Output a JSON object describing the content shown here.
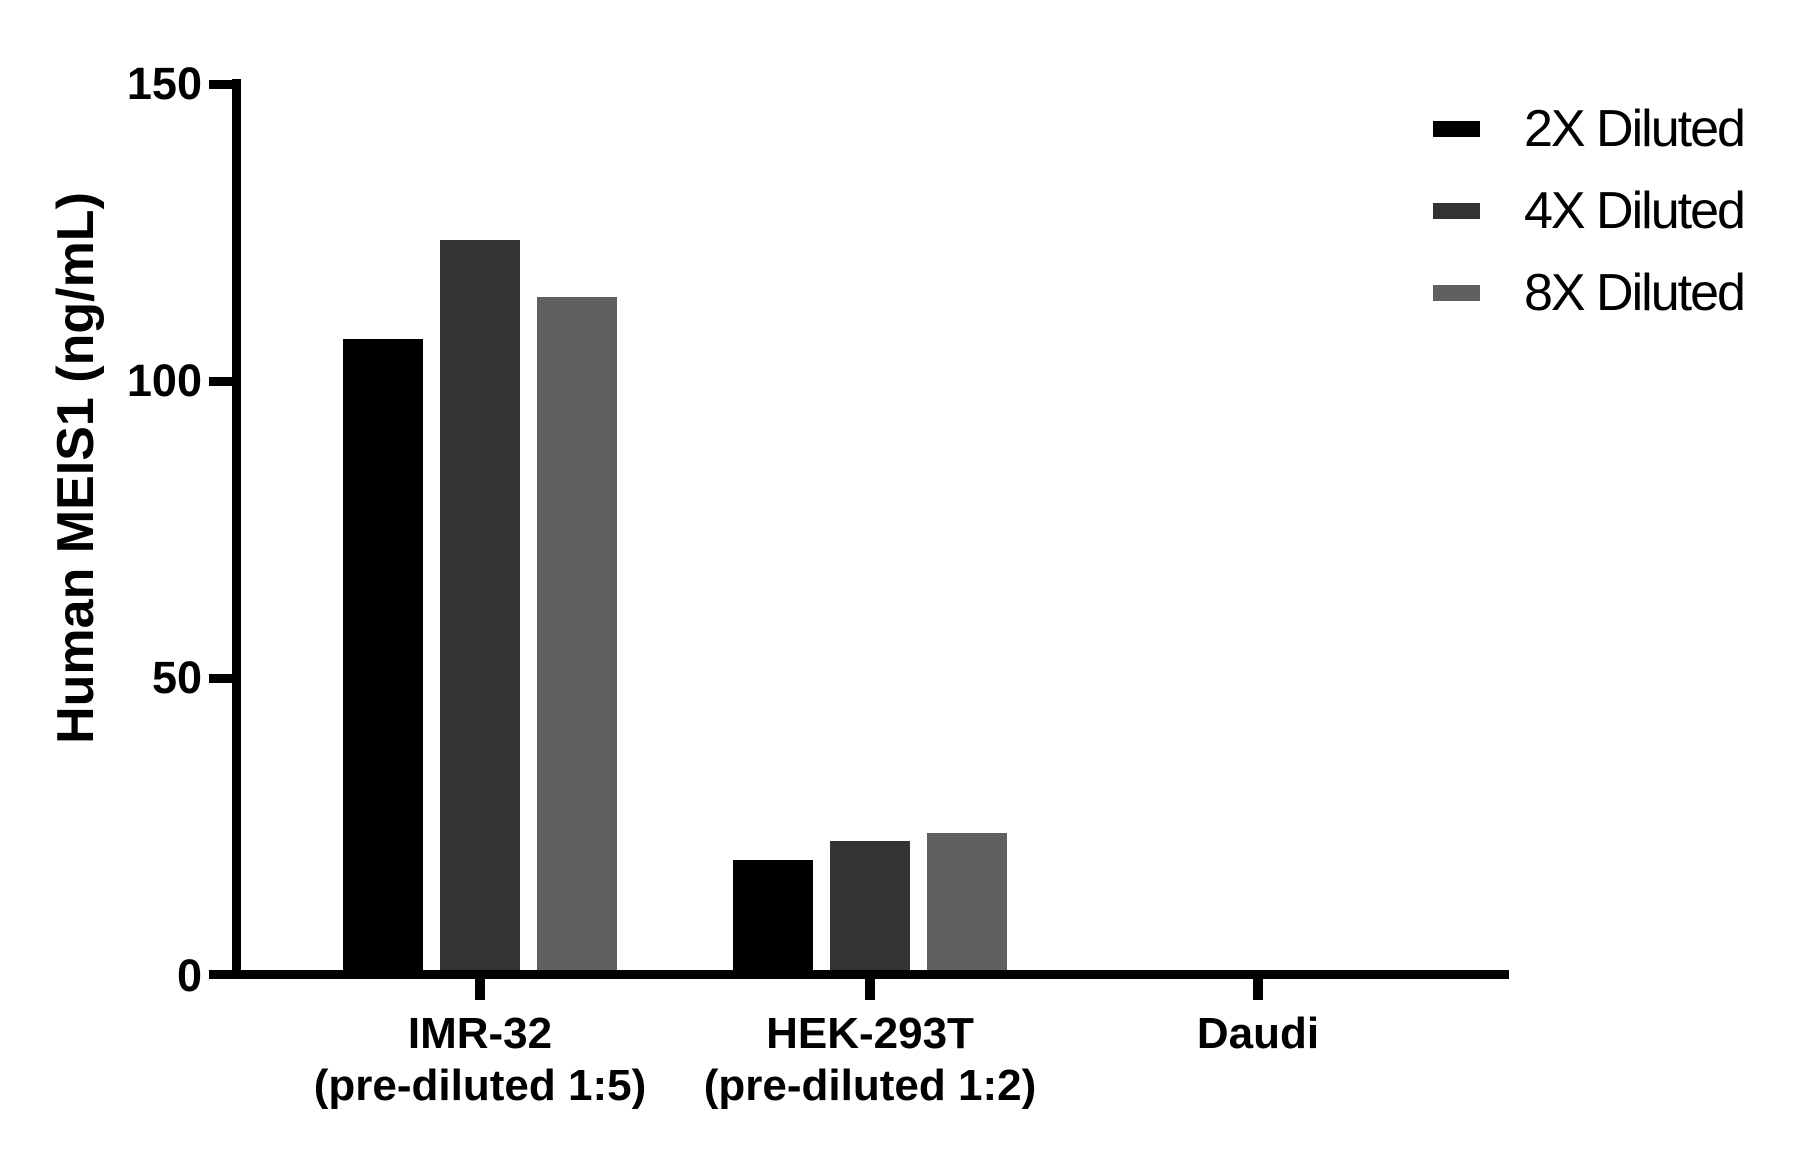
{
  "chart_data": {
    "type": "bar",
    "title": "",
    "ylabel": "Human MEIS1 (ng/mL)",
    "xlabel": "",
    "ylim": [
      0,
      150
    ],
    "yticks": [
      0,
      50,
      100,
      150
    ],
    "categories": [
      {
        "line1": "IMR-32",
        "line2": "(pre-diluted 1:5)"
      },
      {
        "line1": "HEK-293T",
        "line2": "(pre-diluted 1:2)"
      },
      {
        "line1": "Daudi",
        "line2": ""
      }
    ],
    "series": [
      {
        "name": "2X Diluted",
        "color": "#000000",
        "values": [
          107.1,
          19.5,
          0
        ]
      },
      {
        "name": "4X Diluted",
        "color": "#333333",
        "values": [
          123.9,
          22.7,
          0
        ]
      },
      {
        "name": "8X Diluted",
        "color": "#606060",
        "values": [
          114.2,
          24.0,
          0
        ]
      }
    ],
    "legend_position": "top-right",
    "grid": false,
    "background": "#ffffff"
  }
}
